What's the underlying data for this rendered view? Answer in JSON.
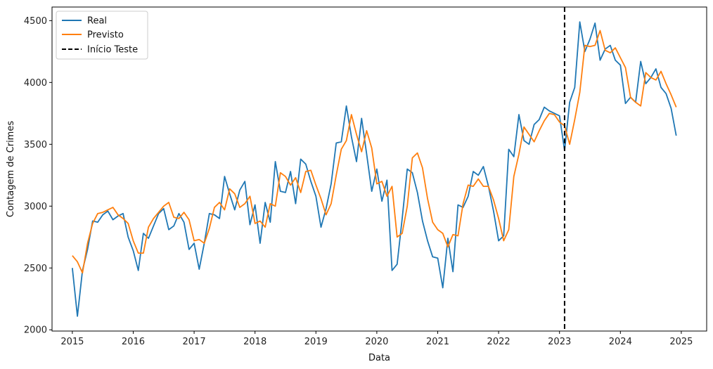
{
  "chart_data": {
    "type": "line",
    "xlabel": "Data",
    "ylabel": "Contagem de Crimes",
    "xlim": [
      "2014-09-01",
      "2025-06-01"
    ],
    "ylim": [
      1990,
      4610
    ],
    "xticks": [
      {
        "label": "2015",
        "date": "2015-01-01"
      },
      {
        "label": "2016",
        "date": "2016-01-01"
      },
      {
        "label": "2017",
        "date": "2017-01-01"
      },
      {
        "label": "2018",
        "date": "2018-01-01"
      },
      {
        "label": "2019",
        "date": "2019-01-01"
      },
      {
        "label": "2020",
        "date": "2020-01-01"
      },
      {
        "label": "2021",
        "date": "2021-01-01"
      },
      {
        "label": "2022",
        "date": "2022-01-01"
      },
      {
        "label": "2023",
        "date": "2023-01-01"
      },
      {
        "label": "2024",
        "date": "2024-01-01"
      },
      {
        "label": "2025",
        "date": "2025-01-01"
      }
    ],
    "yticks": [
      2000,
      2500,
      3000,
      3500,
      4000,
      4500
    ],
    "grid": false,
    "legend_position": "top-left",
    "start_month": "2015-01",
    "series": [
      {
        "name": "Real",
        "color": "#1f77b4",
        "style": "solid",
        "values": [
          2500,
          2110,
          2480,
          2650,
          2880,
          2870,
          2930,
          2960,
          2890,
          2920,
          2940,
          2750,
          2640,
          2480,
          2780,
          2740,
          2840,
          2940,
          2980,
          2810,
          2840,
          2940,
          2870,
          2650,
          2700,
          2490,
          2700,
          2940,
          2930,
          2900,
          3240,
          3100,
          2970,
          3130,
          3200,
          2850,
          3010,
          2700,
          3030,
          2870,
          3360,
          3120,
          3110,
          3280,
          3020,
          3380,
          3340,
          3200,
          3080,
          2830,
          2980,
          3180,
          3510,
          3520,
          3810,
          3560,
          3360,
          3710,
          3420,
          3120,
          3300,
          3040,
          3210,
          2480,
          2530,
          2900,
          3300,
          3270,
          3110,
          2880,
          2720,
          2590,
          2580,
          2340,
          2740,
          2470,
          3010,
          2990,
          3080,
          3280,
          3250,
          3320,
          3160,
          2960,
          2720,
          2760,
          3460,
          3400,
          3740,
          3530,
          3500,
          3660,
          3700,
          3800,
          3770,
          3750,
          3730,
          3450,
          3840,
          3960,
          4490,
          4250,
          4350,
          4480,
          4180,
          4270,
          4300,
          4180,
          4140,
          3830,
          3880,
          3840,
          4170,
          3990,
          4040,
          4110,
          3960,
          3910,
          3790,
          3570
        ]
      },
      {
        "name": "Previsto",
        "color": "#ff7f0e",
        "style": "solid",
        "values": [
          2600,
          2550,
          2460,
          2700,
          2860,
          2940,
          2950,
          2970,
          2990,
          2930,
          2900,
          2860,
          2720,
          2620,
          2620,
          2830,
          2900,
          2950,
          3000,
          3030,
          2910,
          2900,
          2950,
          2890,
          2720,
          2730,
          2700,
          2820,
          2990,
          3030,
          2970,
          3140,
          3100,
          2990,
          3020,
          3080,
          2860,
          2880,
          2830,
          3020,
          3000,
          3270,
          3240,
          3170,
          3230,
          3110,
          3280,
          3290,
          3170,
          3060,
          2930,
          3020,
          3250,
          3460,
          3530,
          3740,
          3580,
          3440,
          3610,
          3470,
          3180,
          3200,
          3080,
          3160,
          2750,
          2780,
          3000,
          3390,
          3430,
          3310,
          3060,
          2870,
          2810,
          2780,
          2670,
          2770,
          2760,
          3020,
          3170,
          3160,
          3220,
          3160,
          3160,
          3050,
          2900,
          2720,
          2810,
          3240,
          3420,
          3640,
          3580,
          3520,
          3610,
          3690,
          3750,
          3740,
          3680,
          3650,
          3500,
          3700,
          3920,
          4300,
          4290,
          4300,
          4420,
          4260,
          4240,
          4280,
          4200,
          4120,
          3880,
          3840,
          3810,
          4080,
          4040,
          4020,
          4090,
          3990,
          3900,
          3800
        ]
      }
    ],
    "vlines": [
      {
        "name": "Início Teste",
        "date": "2023-02-01",
        "color": "#000000",
        "style": "dashed"
      }
    ]
  }
}
